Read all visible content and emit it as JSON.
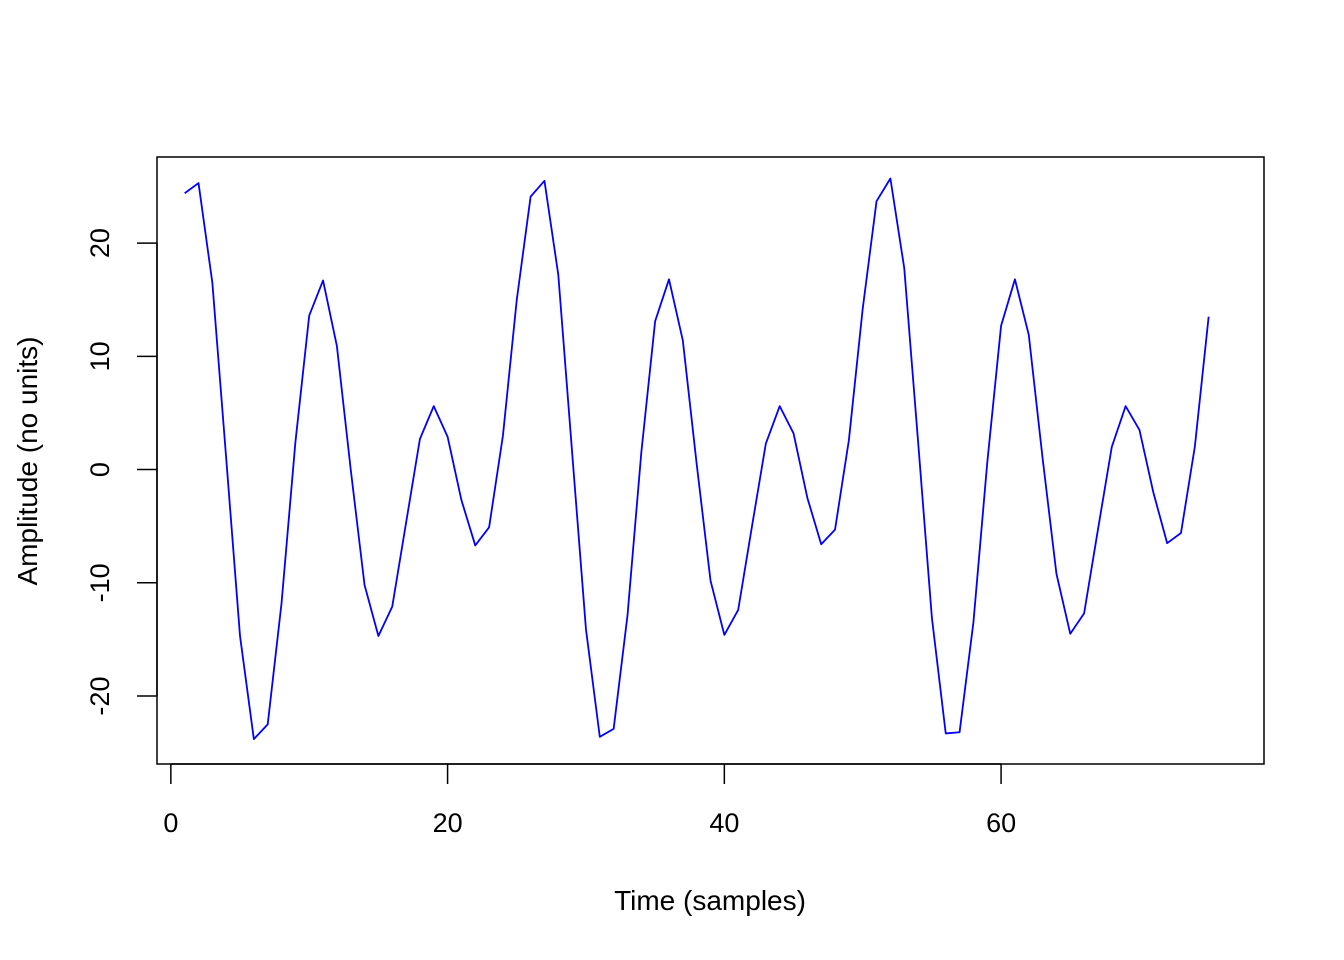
{
  "chart_data": {
    "type": "line",
    "title": "",
    "xlabel": "Time (samples)",
    "ylabel": "Amplitude (no units)",
    "xlim": [
      -1,
      79
    ],
    "ylim": [
      -26,
      27.6
    ],
    "x_ticks": [
      0,
      20,
      40,
      60
    ],
    "y_ticks": [
      -20,
      -10,
      0,
      10,
      20
    ],
    "x_tick_labels": [
      "0",
      "20",
      "40",
      "60"
    ],
    "y_tick_labels": [
      "-20",
      "-10",
      "0",
      "10",
      "20"
    ],
    "grid": false,
    "legend": "none",
    "series": [
      {
        "color": "#0000ff",
        "x": [
          1,
          2,
          3,
          4,
          5,
          6,
          7,
          8,
          9,
          10,
          11,
          12,
          13,
          14,
          15,
          16,
          17,
          18,
          19,
          20,
          21,
          22,
          23,
          24,
          25,
          26,
          27,
          28,
          29,
          30,
          31,
          32,
          33,
          34,
          35,
          36,
          37,
          38,
          39,
          40,
          41,
          42,
          43,
          44,
          45,
          46,
          47,
          48,
          49,
          50,
          51,
          52,
          53,
          54,
          55,
          56,
          57,
          58,
          59,
          60,
          61,
          62,
          63,
          64,
          65,
          66,
          67,
          68,
          69,
          70,
          71,
          72,
          73,
          74,
          75
        ],
        "values": [
          24.4,
          25.3,
          16.5,
          1.0,
          -14.7,
          -23.8,
          -22.5,
          -11.8,
          2.4,
          13.6,
          16.7,
          10.9,
          0.0,
          -10.2,
          -14.7,
          -12.1,
          -4.7,
          2.7,
          5.6,
          2.9,
          -2.7,
          -6.7,
          -5.1,
          3.0,
          15.0,
          24.1,
          25.5,
          17.2,
          1.5,
          -14.1,
          -23.6,
          -22.9,
          -12.9,
          1.5,
          13.1,
          16.8,
          11.4,
          0.5,
          -9.8,
          -14.6,
          -12.4,
          -5.0,
          2.3,
          5.6,
          3.2,
          -2.5,
          -6.6,
          -5.3,
          2.6,
          14.2,
          23.7,
          25.7,
          17.8,
          2.5,
          -13.1,
          -23.3,
          -23.2,
          -13.5,
          0.6,
          12.7,
          16.8,
          11.9,
          1.0,
          -9.2,
          -14.5,
          -12.7,
          -5.3,
          2.0,
          5.6,
          3.5,
          -2.0,
          -6.5,
          -5.6,
          2.0,
          13.5
        ]
      }
    ]
  }
}
